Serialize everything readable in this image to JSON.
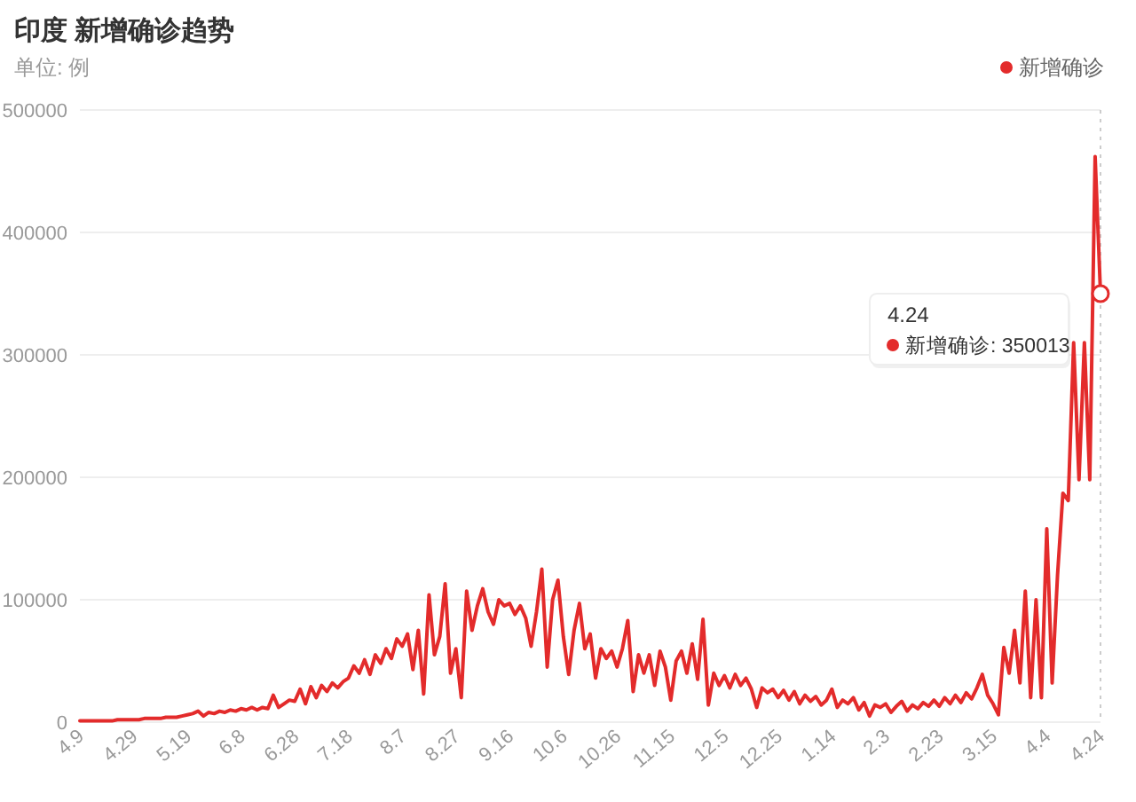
{
  "chart_data": {
    "type": "line",
    "title": "印度 新增确诊趋势",
    "subtitle": "单位: 例",
    "categories": [
      "4.9",
      null,
      null,
      null,
      null,
      null,
      null,
      null,
      null,
      null,
      "4.29",
      null,
      null,
      null,
      null,
      null,
      null,
      null,
      null,
      null,
      "5.19",
      null,
      null,
      null,
      null,
      null,
      null,
      null,
      null,
      null,
      "6.8",
      null,
      null,
      null,
      null,
      null,
      null,
      null,
      null,
      null,
      "6.28",
      null,
      null,
      null,
      null,
      null,
      null,
      null,
      null,
      null,
      "7.18",
      null,
      null,
      null,
      null,
      null,
      null,
      null,
      null,
      null,
      "8.7",
      null,
      null,
      null,
      null,
      null,
      null,
      null,
      null,
      null,
      "8.27",
      null,
      null,
      null,
      null,
      null,
      null,
      null,
      null,
      null,
      "9.16",
      null,
      null,
      null,
      null,
      null,
      null,
      null,
      null,
      null,
      "10.6",
      null,
      null,
      null,
      null,
      null,
      null,
      null,
      null,
      null,
      "10.26",
      null,
      null,
      null,
      null,
      null,
      null,
      null,
      null,
      null,
      "11.15",
      null,
      null,
      null,
      null,
      null,
      null,
      null,
      null,
      null,
      "12.5",
      null,
      null,
      null,
      null,
      null,
      null,
      null,
      null,
      null,
      "12.25",
      null,
      null,
      null,
      null,
      null,
      null,
      null,
      null,
      null,
      "1.14",
      null,
      null,
      null,
      null,
      null,
      null,
      null,
      null,
      null,
      "2.3",
      null,
      null,
      null,
      null,
      null,
      null,
      null,
      null,
      null,
      "2.23",
      null,
      null,
      null,
      null,
      null,
      null,
      null,
      null,
      null,
      "3.15",
      null,
      null,
      null,
      null,
      null,
      null,
      null,
      null,
      null,
      "4.4",
      null,
      null,
      null,
      null,
      null,
      null,
      null,
      null,
      null,
      "4.24"
    ],
    "series": [
      {
        "name": "新增确诊",
        "color": "#e32b2b",
        "values": [
          1000,
          1000,
          1000,
          1000,
          1000,
          1000,
          1000,
          2000,
          2000,
          2000,
          2000,
          2000,
          3000,
          3000,
          3000,
          3000,
          4000,
          4000,
          4000,
          5000,
          6000,
          7000,
          9000,
          5000,
          8000,
          7000,
          9000,
          8000,
          10000,
          9000,
          11000,
          10000,
          12000,
          10000,
          12000,
          11000,
          22000,
          12000,
          15000,
          18000,
          17000,
          27000,
          15000,
          29000,
          20000,
          30000,
          25000,
          32000,
          28000,
          33000,
          36000,
          46000,
          40000,
          51000,
          39000,
          55000,
          48000,
          60000,
          52000,
          68000,
          62000,
          72000,
          43000,
          75000,
          23000,
          104000,
          55000,
          70000,
          113000,
          40000,
          60000,
          20000,
          107000,
          75000,
          95000,
          109000,
          90000,
          80000,
          100000,
          95000,
          97000,
          88000,
          95000,
          85000,
          62000,
          90000,
          125000,
          45000,
          100000,
          116000,
          70000,
          39000,
          75000,
          97000,
          60000,
          72000,
          36000,
          60000,
          52000,
          58000,
          45000,
          60000,
          83000,
          25000,
          55000,
          40000,
          55000,
          30000,
          58000,
          45000,
          18000,
          50000,
          58000,
          40000,
          64000,
          35000,
          84000,
          14000,
          40000,
          30000,
          38000,
          28000,
          39000,
          30000,
          36000,
          27000,
          12000,
          28000,
          24000,
          27000,
          20000,
          26000,
          18000,
          25000,
          15000,
          22000,
          17000,
          21000,
          14000,
          18000,
          27000,
          12000,
          18000,
          15000,
          20000,
          10000,
          16000,
          5000,
          14000,
          12000,
          15000,
          8000,
          13000,
          17000,
          9000,
          14000,
          11000,
          16000,
          13000,
          18000,
          13000,
          20000,
          15000,
          22000,
          16000,
          24000,
          19000,
          28000,
          39000,
          22000,
          15000,
          6000,
          61000,
          40000,
          75000,
          32000,
          107000,
          20000,
          100000,
          20000,
          158000,
          32000,
          120000,
          187000,
          181000,
          310000,
          198000,
          310000,
          198000,
          462000,
          350013
        ]
      }
    ],
    "ylim": [
      0,
      500000
    ],
    "yticks": [
      0,
      100000,
      200000,
      300000,
      400000,
      500000
    ],
    "grid": "y",
    "legend": "top right",
    "ref_lines": [
      {
        "axis": "x",
        "value": "4.24",
        "color": "#cccccc",
        "line_style": "dotted"
      }
    ],
    "annotations": [
      {
        "text": "新增确诊: 350013",
        "x": "4.24",
        "y": 350013
      }
    ]
  }
}
